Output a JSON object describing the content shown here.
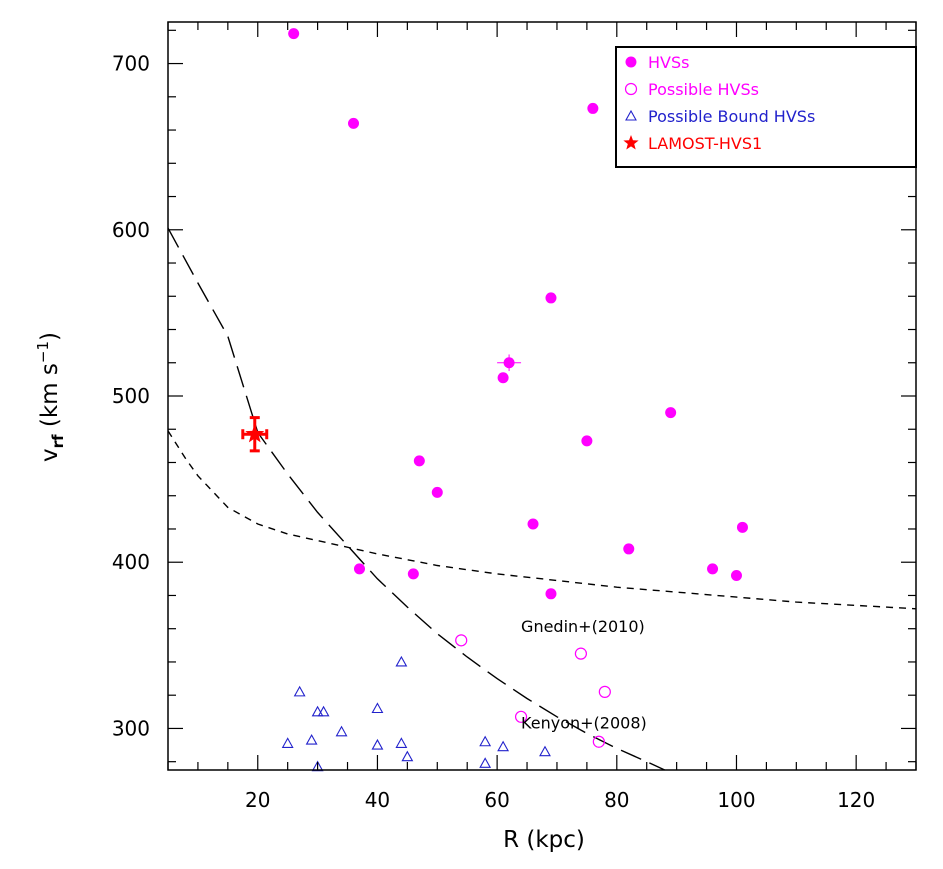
{
  "chart_data": {
    "type": "scatter",
    "xlabel": "R (kpc)",
    "ylabel_main": "v",
    "ylabel_sub": "rf",
    "ylabel_unit_open": " (km s",
    "ylabel_unit_exp": "−1",
    "ylabel_unit_close": ")",
    "xlim": [
      5,
      130
    ],
    "ylim": [
      275,
      725
    ],
    "xticks": [
      20,
      40,
      60,
      80,
      100,
      120
    ],
    "xticks_minor_step": 5,
    "yticks": [
      300,
      400,
      500,
      600,
      700
    ],
    "yticks_minor_step": 20,
    "grid": false,
    "legend_position": "top-right",
    "colors": {
      "magenta": "#ff00ff",
      "blue": "#2222cc",
      "red": "#ff0000",
      "black": "#000000"
    },
    "legend": [
      {
        "label": "HVSs",
        "marker": "filled-circle",
        "color": "#ff00ff"
      },
      {
        "label": "Possible HVSs",
        "marker": "open-circle",
        "color": "#ff00ff"
      },
      {
        "label": "Possible Bound HVSs",
        "marker": "open-triangle",
        "color": "#2222cc"
      },
      {
        "label": "LAMOST-HVS1",
        "marker": "star",
        "color": "#ff0000"
      }
    ],
    "series": [
      {
        "name": "HVSs",
        "marker": "filled-circle",
        "color": "#ff00ff",
        "points": [
          [
            26,
            718
          ],
          [
            36,
            664
          ],
          [
            76,
            673
          ],
          [
            69,
            559
          ],
          [
            62,
            520
          ],
          [
            61,
            511
          ],
          [
            89,
            490
          ],
          [
            75,
            473
          ],
          [
            47,
            461
          ],
          [
            50,
            442
          ],
          [
            66,
            423
          ],
          [
            101,
            421
          ],
          [
            82,
            408
          ],
          [
            37,
            396
          ],
          [
            46,
            393
          ],
          [
            96,
            396
          ],
          [
            100,
            392
          ],
          [
            69,
            381
          ]
        ]
      },
      {
        "name": "Possible HVSs",
        "marker": "open-circle",
        "color": "#ff00ff",
        "points": [
          [
            54,
            353
          ],
          [
            74,
            345
          ],
          [
            78,
            322
          ],
          [
            64,
            307
          ],
          [
            77,
            292
          ]
        ]
      },
      {
        "name": "Possible Bound HVSs",
        "marker": "open-triangle",
        "color": "#2222cc",
        "points": [
          [
            44,
            340
          ],
          [
            27,
            322
          ],
          [
            40,
            312
          ],
          [
            30,
            310
          ],
          [
            31,
            310
          ],
          [
            34,
            298
          ],
          [
            29,
            293
          ],
          [
            25,
            291
          ],
          [
            40,
            290
          ],
          [
            44,
            291
          ],
          [
            58,
            292
          ],
          [
            61,
            289
          ],
          [
            68,
            286
          ],
          [
            45,
            283
          ],
          [
            30,
            277
          ],
          [
            58,
            279
          ]
        ]
      },
      {
        "name": "LAMOST-HVS1",
        "marker": "star",
        "color": "#ff0000",
        "points": [
          [
            19.5,
            477
          ]
        ],
        "xerr": 2.0,
        "yerr": 10
      }
    ],
    "hvs_error_bar_point": {
      "x": 62,
      "y": 520,
      "xerr": 2.0,
      "yerr": 5
    },
    "curves": [
      {
        "label": "Kenyon+(2008)",
        "style": "long-dash",
        "points": [
          [
            5,
            601
          ],
          [
            10,
            568
          ],
          [
            15,
            536
          ],
          [
            20,
            478
          ],
          [
            25,
            453
          ],
          [
            30,
            430
          ],
          [
            35,
            410
          ],
          [
            40,
            390
          ],
          [
            45,
            373
          ],
          [
            50,
            357
          ],
          [
            55,
            343
          ],
          [
            60,
            330
          ],
          [
            65,
            318
          ],
          [
            70,
            307
          ],
          [
            75,
            297
          ],
          [
            80,
            288
          ],
          [
            85,
            280
          ],
          [
            88,
            275
          ]
        ],
        "label_at": [
          64,
          300
        ]
      },
      {
        "label": "Gnedin+(2010)",
        "style": "short-dash",
        "points": [
          [
            5,
            479
          ],
          [
            8,
            462
          ],
          [
            10,
            452
          ],
          [
            15,
            433
          ],
          [
            20,
            423
          ],
          [
            25,
            417
          ],
          [
            30,
            413
          ],
          [
            40,
            405
          ],
          [
            50,
            398
          ],
          [
            60,
            393
          ],
          [
            70,
            389
          ],
          [
            80,
            385
          ],
          [
            90,
            382
          ],
          [
            100,
            379
          ],
          [
            110,
            376
          ],
          [
            120,
            374
          ],
          [
            130,
            372
          ]
        ],
        "label_at": [
          64,
          358
        ]
      }
    ]
  }
}
